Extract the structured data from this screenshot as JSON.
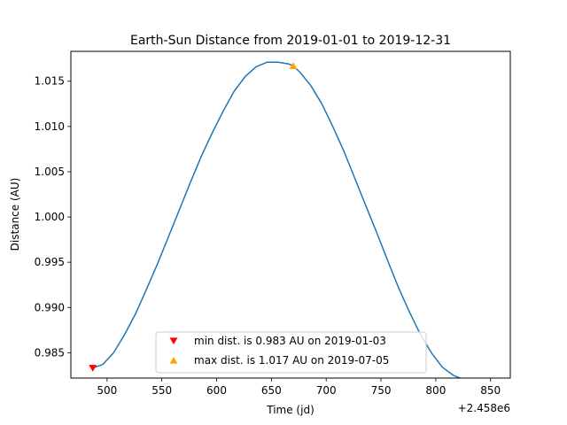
{
  "chart_data": {
    "type": "line",
    "title": "Earth-Sun Distance from 2019-01-01 to 2019-12-31",
    "xlabel": "Time (jd)",
    "ylabel": "Distance (AU)",
    "x_offset_label": "+2.458e6",
    "xlim": [
      467,
      868
    ],
    "ylim": [
      0.9822,
      1.0183
    ],
    "xticks": [
      500,
      550,
      600,
      650,
      700,
      750,
      800,
      850
    ],
    "yticks": [
      0.985,
      0.99,
      0.995,
      1.0,
      1.005,
      1.01,
      1.015
    ],
    "ytick_labels": [
      "0.985",
      "0.990",
      "0.995",
      "1.000",
      "1.005",
      "1.010",
      "1.015"
    ],
    "grid": false,
    "series": [
      {
        "color": "#1f77b4",
        "x": [
          486,
          496,
          506,
          516,
          526,
          536,
          546,
          556,
          566,
          576,
          586,
          596,
          606,
          616,
          626,
          636,
          646,
          656,
          666,
          670,
          676,
          686,
          696,
          706,
          716,
          726,
          736,
          746,
          756,
          766,
          776,
          786,
          796,
          806,
          816,
          826,
          836,
          846,
          850
        ],
        "y": [
          0.9833,
          0.9837,
          0.985,
          0.987,
          0.9893,
          0.992,
          0.9948,
          0.9978,
          1.0008,
          1.0038,
          1.0067,
          1.0093,
          1.0117,
          1.0139,
          1.0155,
          1.0166,
          1.0171,
          1.0171,
          1.0169,
          1.0167,
          1.016,
          1.0145,
          1.0125,
          1.01,
          1.0073,
          1.0043,
          1.0013,
          0.9983,
          0.9952,
          0.9922,
          0.9895,
          0.987,
          0.985,
          0.9834,
          0.9825,
          0.982,
          0.982,
          0.982,
          0.982
        ]
      }
    ],
    "markers": [
      {
        "label": "min dist. is 0.983 AU on 2019-01-03",
        "x": 487,
        "y": 0.9833,
        "symbol": "triangle-down",
        "color": "#ff0000"
      },
      {
        "label": "max dist. is 1.017 AU on 2019-07-05",
        "x": 670,
        "y": 1.0167,
        "symbol": "triangle-up",
        "color": "#ffa500"
      }
    ],
    "legend_position": "lower center"
  }
}
